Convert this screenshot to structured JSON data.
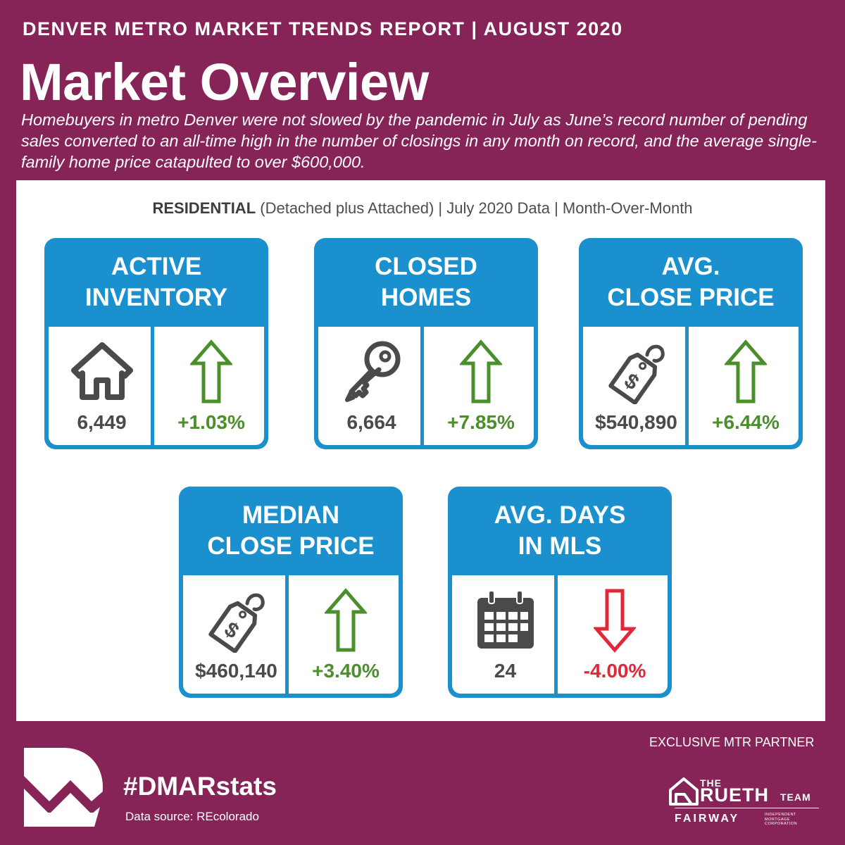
{
  "header": {
    "report_title": "DENVER METRO MARKET TRENDS REPORT  |  AUGUST 2020",
    "page_title": "Market Overview",
    "intro": "Homebuyers in metro Denver were not slowed by the pandemic in July as June’s record number of pending sales converted to an all-time high in the number of closings in any month on record, and the average single-family home price catapulted to over $600,000."
  },
  "subtitle": {
    "bold": "RESIDENTIAL",
    "rest": " (Detached plus Attached) | July 2020 Data | Month-Over-Month"
  },
  "cards": [
    {
      "title_line1": "ACTIVE",
      "title_line2": "INVENTORY",
      "icon": "house-icon",
      "value": "6,449",
      "change": "+1.03%",
      "direction": "up"
    },
    {
      "title_line1": "CLOSED",
      "title_line2": "HOMES",
      "icon": "key-icon",
      "value": "6,664",
      "change": "+7.85%",
      "direction": "up"
    },
    {
      "title_line1": "AVG.",
      "title_line2": "CLOSE PRICE",
      "icon": "price-tag-icon",
      "value": "$540,890",
      "change": "+6.44%",
      "direction": "up"
    },
    {
      "title_line1": "MEDIAN",
      "title_line2": "CLOSE PRICE",
      "icon": "price-tag-icon",
      "value": "$460,140",
      "change": "+3.40%",
      "direction": "up"
    },
    {
      "title_line1": "AVG. DAYS",
      "title_line2": "IN MLS",
      "icon": "calendar-icon",
      "value": "24",
      "change": "-4.00%",
      "direction": "down"
    }
  ],
  "colors": {
    "background": "#862457",
    "card_blue": "#1a90cf",
    "up_green": "#4b8f2d",
    "down_red": "#e0283a",
    "icon_gray": "#4a4a4a"
  },
  "footer": {
    "hashtag": "#DMARstats",
    "source": "Data source: REcolorado",
    "partner_label": "EXCLUSIVE MTR PARTNER",
    "partner_the": "THE",
    "partner_name": "RUETH",
    "partner_team": "TEAM",
    "partner_company": "FAIRWAY",
    "partner_company_sub": "INDEPENDENT MORTGAGE CORPORATION"
  }
}
